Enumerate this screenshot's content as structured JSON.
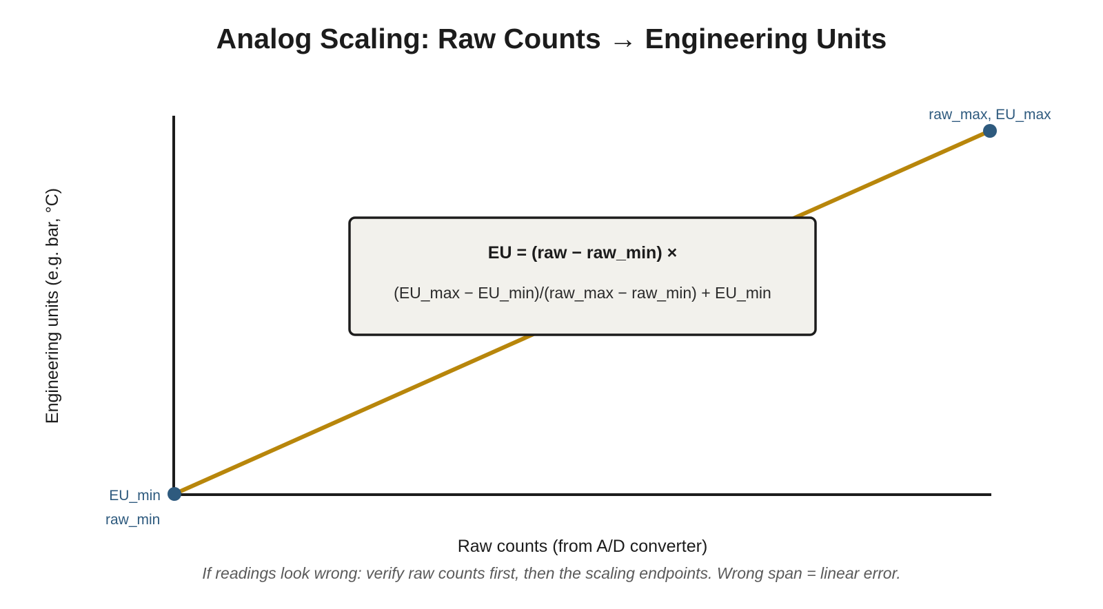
{
  "title": "Analog Scaling: Raw Counts → Engineering Units",
  "axes": {
    "x_label": "Raw counts (from A/D converter)",
    "y_label": "Engineering units (e.g. bar, °C)"
  },
  "points": {
    "min": {
      "x_label": "raw_min",
      "y_label": "EU_min"
    },
    "max": {
      "label": "raw_max, EU_max"
    }
  },
  "formula": {
    "line1": "EU = (raw − raw_min) ×",
    "line2": "(EU_max − EU_min)/(raw_max − raw_min) + EU_min"
  },
  "footnote": "If readings look wrong: verify raw counts first, then the scaling endpoints. Wrong span = linear error.",
  "colors": {
    "axis": "#1c1c1c",
    "line": "#b8860b",
    "point": "#2e5a7e",
    "point_label": "#2e5a7e",
    "box_fill": "#f2f1ec",
    "box_stroke": "#1c1c1c"
  }
}
